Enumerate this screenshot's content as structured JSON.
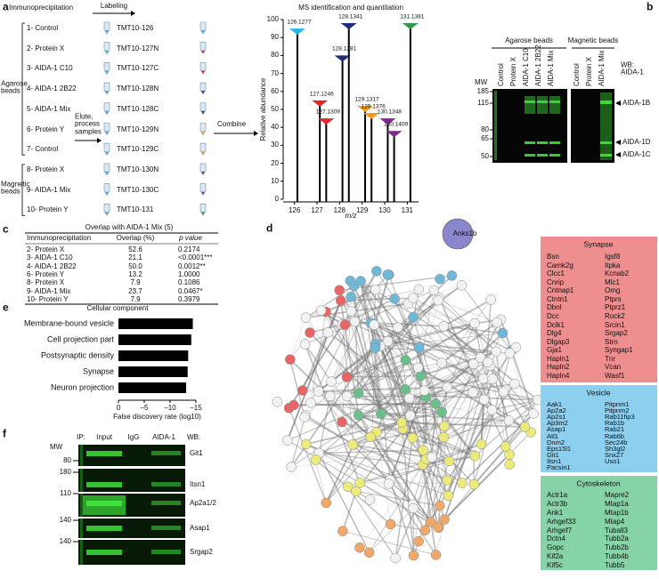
{
  "panels": {
    "a": {
      "letter": "a",
      "heading": "Immunoprecipitation",
      "labeling": "Labeling",
      "samples": [
        "1- Control",
        "2- Protein X",
        "3- AIDA-1 C10",
        "4- AIDA-1 2B22",
        "5- AIDA-1 Mix",
        "6- Protein Y",
        "7- Control",
        "8- Protein X",
        "9- AIDA-1 Mix",
        "10- Protein Y"
      ],
      "groups": [
        "Agarose beads",
        "Magnetic beads"
      ],
      "tags": [
        "TMT10-126",
        "TMT10-127N",
        "TMT10-127C",
        "TMT10-128N",
        "TMT10-128C",
        "TMT10-129N",
        "TMT10-129C",
        "TMT10-130N",
        "TMT10-130C",
        "TMT10-131"
      ],
      "tag_colors": [
        "#29b6e8",
        "#e4262b",
        "#e4262b",
        "#1f2c7a",
        "#1f2c7a",
        "#f39a1e",
        "#f39a1e",
        "#7b2c8e",
        "#7b2c8e",
        "#2e9d48"
      ],
      "elute": "Elute, process samples",
      "combine": "Combine"
    },
    "b": {
      "letter": "b",
      "headers": [
        "Agarose beads",
        "Magnetic beads"
      ],
      "lanes": [
        "Control",
        "Protein X",
        "AIDA-1 C10",
        "AIDA-1 2B22",
        "AIDA-1 Mix",
        "Control",
        "Protein X",
        "AIDA-1 Mix"
      ],
      "mw_label": "MW",
      "mw": [
        185,
        115,
        80,
        65,
        50
      ],
      "wb": "WB: AIDA-1",
      "bands": [
        "AIDA-1B",
        "AIDA-1D",
        "AIDA-1C"
      ]
    },
    "c": {
      "letter": "c",
      "title": "Overlap with AIDA-1 Mix (5)",
      "columns": [
        "Immunoprecipitation",
        "Overlap (%)",
        "p value"
      ],
      "rows": [
        [
          "2- Protein X",
          "52.6",
          "0.2174"
        ],
        [
          "3- AIDA-1 C10",
          "21.1",
          "<0.0001***"
        ],
        [
          "4- AIDA-1 2B22",
          "50.0",
          "0.0012**"
        ],
        [
          "6- Protein Y",
          "13.2",
          "1.0000"
        ],
        [
          "8- Protein X",
          "7.9",
          "0.1086"
        ],
        [
          "9- AIDA-1 Mix",
          "23.7",
          "0.0467*"
        ],
        [
          "10- Protein Y",
          "7.9",
          "0.3979"
        ]
      ]
    },
    "d": {
      "letter": "d",
      "hub": "Anks1b",
      "groups": [
        {
          "title": "Synapse",
          "color": "#ef8e8e",
          "genes": [
            [
              "Bsn",
              "Camk2g",
              "Clcc1",
              "Cnrip",
              "Cntnap1",
              "Ctntn1",
              "Dbnl",
              "Dcc",
              "Dclk1",
              "Dlg4",
              "Dlgap3",
              "Gja1",
              "Hapln1",
              "Hapln2",
              "Hapln4"
            ],
            [
              "Igsf8",
              "Itpka",
              "Kcnab2",
              "Mlc1",
              "Omg",
              "Ptprs",
              "Ptprz1",
              "Rock2",
              "Srcin1",
              "Srgap2",
              "Strn",
              "Syngap1",
              "Tnr",
              "Vcan",
              "Wasf1"
            ]
          ]
        },
        {
          "title": "Vesicle",
          "color": "#8ccfee",
          "genes": [
            [
              "Aak1",
              "Ap2a2",
              "Ap2s1",
              "Ap3m2",
              "Asap1",
              "Atl1",
              "Dnm2",
              "Eps15l1",
              "Git1",
              "Itsn1",
              "Pacsin1"
            ],
            [
              "Pitpnm1",
              "Pitpnm2",
              "Rab11fip3",
              "Rab1b",
              "Rab21",
              "Rab6b",
              "Sec24b",
              "Sh3gl2",
              "Snx27",
              "Uso1"
            ]
          ]
        },
        {
          "title": "Cytoskeleton",
          "color": "#86d3a8",
          "genes": [
            [
              "Actr1a",
              "Actr3b",
              "Ank1",
              "Arhgef33",
              "Arhgef7",
              "Dctn4",
              "Gopc",
              "Kif2a",
              "Kif5c"
            ],
            [
              "Mapre2",
              "Mtap1a",
              "Mtap1b",
              "Mtap4",
              "Tuball3",
              "Tubb2a",
              "Tubb2b",
              "Tubb4b",
              "Tubb5"
            ]
          ]
        }
      ]
    },
    "e": {
      "letter": "e"
    },
    "f": {
      "letter": "f",
      "ip": "IP:",
      "lanes": [
        "Input",
        "IgG",
        "AIDA-1"
      ],
      "wb": "WB:",
      "mw_label": "MW",
      "mw": [
        80,
        180,
        110,
        140,
        140
      ],
      "targets": [
        "Git1",
        "Itsn1",
        "Ap2a1/2",
        "Asap1",
        "Srgap2"
      ]
    }
  },
  "chart_data": [
    {
      "type": "stem",
      "title": "MS identification and quantitation",
      "x_label": "m/z",
      "y_label": "Relative abundance",
      "x": [
        126.1277,
        127.1246,
        127.1309,
        128.1281,
        128.1341,
        129.1317,
        129.1376,
        130.1348,
        130.1409,
        131.1381
      ],
      "values": [
        95,
        55,
        45,
        80,
        98,
        52,
        48,
        45,
        38,
        98
      ],
      "colors": [
        "#29b6e8",
        "#e4262b",
        "#e4262b",
        "#1f2c7a",
        "#1f2c7a",
        "#f39a1e",
        "#f39a1e",
        "#7b2c8e",
        "#7b2c8e",
        "#2e9d48"
      ],
      "xlim": [
        125.5,
        131.5
      ],
      "ylim": [
        0,
        100
      ],
      "xticks": [
        126,
        127,
        128,
        129,
        130,
        131
      ],
      "yticks": [
        0,
        10,
        20,
        30,
        40,
        50,
        60,
        70,
        80,
        90,
        100
      ]
    },
    {
      "type": "hbar",
      "title": "Cellular component",
      "x_label": "False discovery rate (log10)",
      "categories": [
        "Membrane-bound vesicle",
        "Cell projection part",
        "Postsynaptic density",
        "Synapse",
        "Neuron projection"
      ],
      "values": [
        -14.4,
        -14.1,
        -13.5,
        -13.4,
        -13.1
      ],
      "color": "#000000",
      "xlim": [
        0,
        -15
      ],
      "xticks": [
        0,
        {
          "value": -5,
          "label": "–5"
        },
        {
          "value": -10,
          "label": "–10"
        },
        {
          "value": -15,
          "label": "–15"
        }
      ]
    }
  ]
}
